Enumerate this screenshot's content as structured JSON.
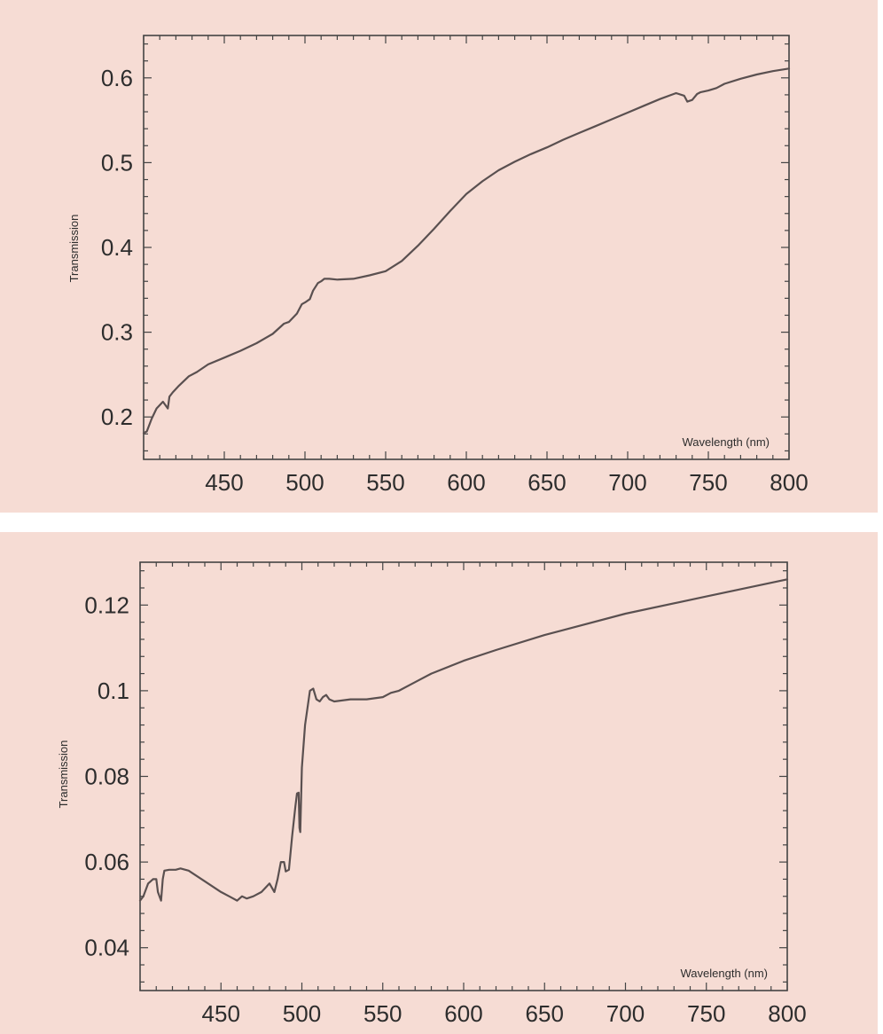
{
  "chart_data": [
    {
      "type": "line",
      "xlabel": "Wavelength (nm)",
      "ylabel": "Transmission",
      "xlim": [
        400,
        800
      ],
      "ylim": [
        0.15,
        0.65
      ],
      "x_ticks": [
        450,
        500,
        550,
        600,
        650,
        700,
        750,
        800
      ],
      "y_ticks": [
        0.2,
        0.3,
        0.4,
        0.5,
        0.6
      ],
      "x_tick_labels": [
        "450",
        "500",
        "550",
        "600",
        "650",
        "700",
        "750",
        "800"
      ],
      "y_tick_labels": [
        "0.2",
        "0.3",
        "0.4",
        "0.5",
        "0.6"
      ],
      "series": [
        {
          "x": [
            400,
            402,
            405,
            408,
            412,
            415,
            416,
            418,
            422,
            428,
            433,
            440,
            450,
            460,
            470,
            480,
            487,
            490,
            495,
            498,
            500,
            503,
            505,
            508,
            510,
            512,
            515,
            520,
            530,
            540,
            550,
            560,
            570,
            580,
            590,
            600,
            610,
            620,
            630,
            640,
            650,
            660,
            670,
            680,
            690,
            700,
            710,
            720,
            730,
            735,
            737,
            740,
            743,
            745,
            750,
            755,
            760,
            770,
            780,
            790,
            800
          ],
          "y": [
            0.181,
            0.183,
            0.198,
            0.21,
            0.218,
            0.21,
            0.224,
            0.229,
            0.237,
            0.248,
            0.253,
            0.262,
            0.27,
            0.278,
            0.287,
            0.298,
            0.31,
            0.312,
            0.322,
            0.333,
            0.335,
            0.339,
            0.349,
            0.358,
            0.36,
            0.363,
            0.363,
            0.362,
            0.363,
            0.367,
            0.372,
            0.384,
            0.402,
            0.422,
            0.443,
            0.463,
            0.478,
            0.491,
            0.501,
            0.51,
            0.518,
            0.527,
            0.535,
            0.543,
            0.551,
            0.559,
            0.567,
            0.575,
            0.582,
            0.579,
            0.572,
            0.574,
            0.581,
            0.583,
            0.585,
            0.588,
            0.593,
            0.599,
            0.604,
            0.608,
            0.611
          ]
        }
      ]
    },
    {
      "type": "line",
      "xlabel": "Wavelength (nm)",
      "ylabel": "Transmission",
      "xlim": [
        400,
        800
      ],
      "ylim": [
        0.03,
        0.13
      ],
      "x_ticks": [
        450,
        500,
        550,
        600,
        650,
        700,
        750,
        800
      ],
      "y_ticks": [
        0.04,
        0.06,
        0.08,
        0.1,
        0.12
      ],
      "x_tick_labels": [
        "450",
        "500",
        "550",
        "600",
        "650",
        "700",
        "750",
        "800"
      ],
      "y_tick_labels": [
        "0.04",
        "0.06",
        "0.08",
        "0.1",
        "0.12"
      ],
      "series": [
        {
          "x": [
            400,
            402,
            405,
            408,
            410,
            411,
            413,
            414,
            415,
            418,
            422,
            425,
            430,
            440,
            450,
            455,
            460,
            463,
            466,
            470,
            475,
            480,
            483,
            485,
            487,
            489,
            490,
            492,
            494,
            496,
            497,
            498,
            498.5,
            499,
            500,
            502,
            505,
            507,
            509,
            511,
            513,
            515,
            517,
            520,
            530,
            540,
            550,
            555,
            560,
            570,
            580,
            600,
            620,
            650,
            700,
            750,
            800
          ],
          "y": [
            0.051,
            0.052,
            0.055,
            0.056,
            0.056,
            0.053,
            0.051,
            0.056,
            0.058,
            0.0582,
            0.0582,
            0.0585,
            0.058,
            0.0555,
            0.053,
            0.052,
            0.051,
            0.052,
            0.0515,
            0.052,
            0.053,
            0.055,
            0.053,
            0.056,
            0.06,
            0.06,
            0.0578,
            0.0582,
            0.066,
            0.073,
            0.076,
            0.0762,
            0.068,
            0.067,
            0.082,
            0.092,
            0.1,
            0.1005,
            0.098,
            0.0975,
            0.0985,
            0.099,
            0.098,
            0.0975,
            0.098,
            0.098,
            0.0985,
            0.0995,
            0.1,
            0.102,
            0.104,
            0.107,
            0.1095,
            0.113,
            0.118,
            0.122,
            0.126
          ]
        }
      ]
    }
  ]
}
